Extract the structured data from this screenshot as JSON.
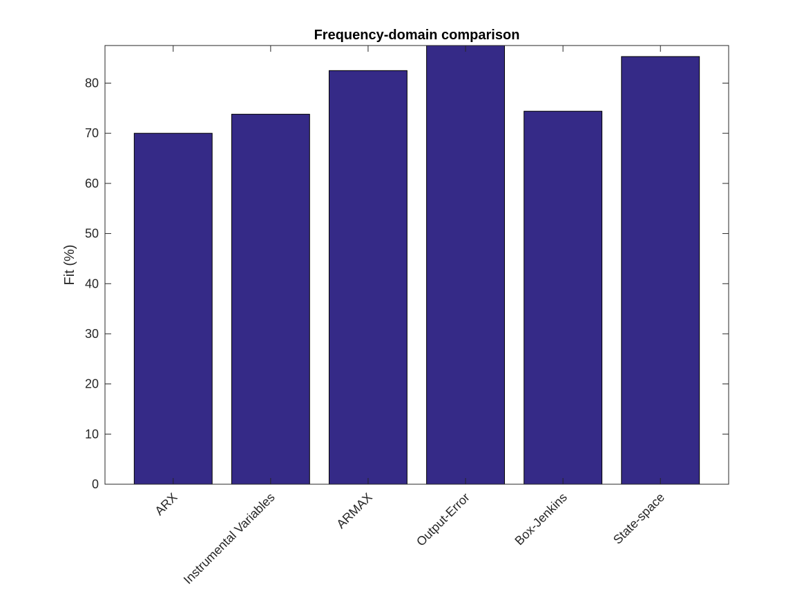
{
  "chart_data": {
    "type": "bar",
    "title": "Frequency-domain comparison",
    "xlabel": "",
    "ylabel": "Fit (%)",
    "categories": [
      "ARX",
      "Instrumental Variables",
      "ARMAX",
      "Output-Error",
      "Box-Jenkins",
      "State-space"
    ],
    "values": [
      70.0,
      73.8,
      82.5,
      88.0,
      74.4,
      85.3
    ],
    "ylim": [
      0,
      87.5
    ],
    "yticks": [
      0,
      10,
      20,
      30,
      40,
      50,
      60,
      70,
      80
    ],
    "grid": false,
    "legend": "none",
    "colors": {
      "bar_fill": "#352A87",
      "bar_edge": "#000000",
      "axis": "#262626"
    }
  }
}
